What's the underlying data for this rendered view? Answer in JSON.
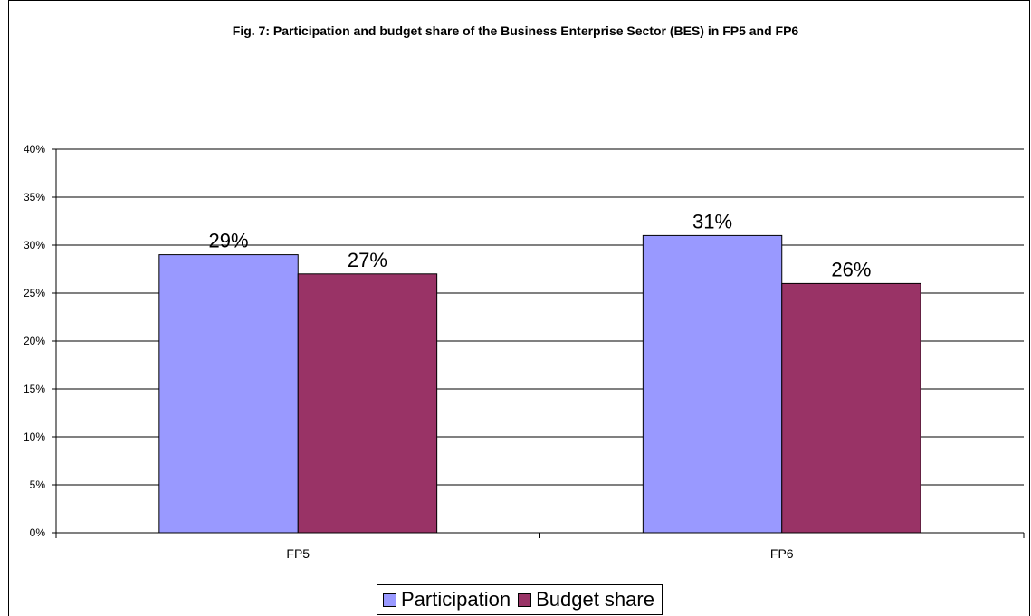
{
  "chart_data": {
    "type": "bar",
    "title": "Fig. 7: Participation and budget share of the Business Enterprise Sector (BES) in FP5 and FP6",
    "categories": [
      "FP5",
      "FP6"
    ],
    "series": [
      {
        "name": "Participation",
        "values": [
          29,
          31
        ],
        "labels": [
          "29%",
          "31%"
        ],
        "color": "#9999ff"
      },
      {
        "name": "Budget share",
        "values": [
          27,
          26
        ],
        "labels": [
          "27%",
          "26%"
        ],
        "color": "#993366"
      }
    ],
    "ylim": [
      0,
      40
    ],
    "yticks": [
      0,
      5,
      10,
      15,
      20,
      25,
      30,
      35,
      40
    ],
    "ytick_labels": [
      "0%",
      "5%",
      "10%",
      "15%",
      "20%",
      "25%",
      "30%",
      "35%",
      "40%"
    ],
    "grid": true,
    "legend_position": "bottom"
  }
}
